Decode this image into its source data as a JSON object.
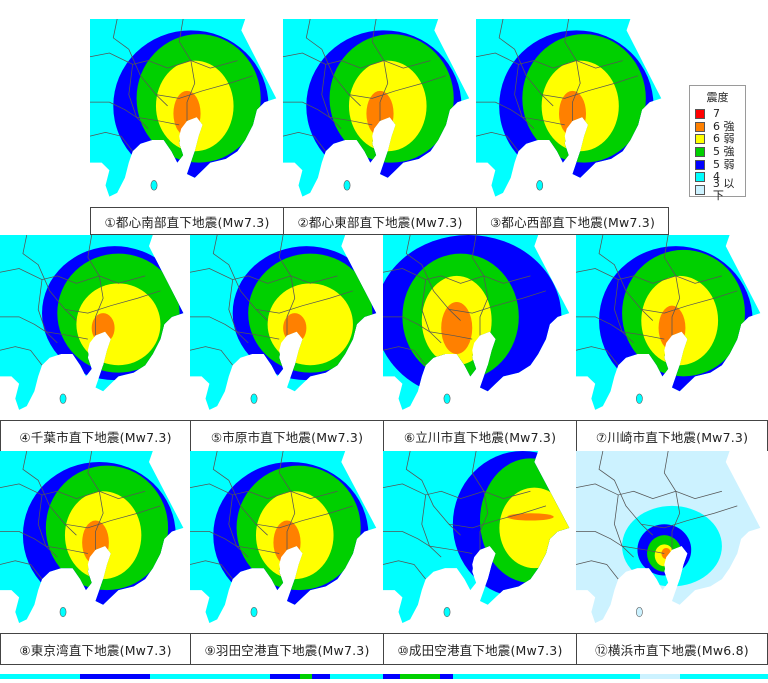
{
  "legend": {
    "title": "震度",
    "items": [
      {
        "label": "7",
        "color": "#ff0000"
      },
      {
        "label": "6 強",
        "color": "#ff8000"
      },
      {
        "label": "6 弱",
        "color": "#ffff00"
      },
      {
        "label": "5 強",
        "color": "#00d000"
      },
      {
        "label": "5 弱",
        "color": "#0000ff"
      },
      {
        "label": "4",
        "color": "#00ffff"
      },
      {
        "label": "3 以下",
        "color": "#ccf2ff"
      }
    ]
  },
  "colors": {
    "sea": "#ffffff",
    "border_line": "#555555",
    "intensity_7": "#ff0000",
    "intensity_6plus": "#ff8000",
    "intensity_6minus": "#ffff00",
    "intensity_5plus": "#00d000",
    "intensity_5minus": "#0000ff",
    "intensity_4": "#00ffff",
    "intensity_3_or_less": "#ccf2ff"
  },
  "panels": [
    {
      "id": 1,
      "caption": "①都心南部直下地震(Mw7.3)",
      "profile": "central"
    },
    {
      "id": 2,
      "caption": "②都心東部直下地震(Mw7.3)",
      "profile": "central"
    },
    {
      "id": 3,
      "caption": "③都心西部直下地震(Mw7.3)",
      "profile": "central"
    },
    {
      "id": 4,
      "caption": "④千葉市直下地震(Mw7.3)",
      "profile": "east"
    },
    {
      "id": 5,
      "caption": "⑤市原市直下地震(Mw7.3)",
      "profile": "east"
    },
    {
      "id": 6,
      "caption": "⑥立川市直下地震(Mw7.3)",
      "profile": "west"
    },
    {
      "id": 7,
      "caption": "⑦川崎市直下地震(Mw7.3)",
      "profile": "central"
    },
    {
      "id": 8,
      "caption": "⑧東京湾直下地震(Mw7.3)",
      "profile": "central"
    },
    {
      "id": 9,
      "caption": "⑨羽田空港直下地震(Mw7.3)",
      "profile": "central"
    },
    {
      "id": 10,
      "caption": "⑩成田空港直下地震(Mw7.3)",
      "profile": "northeast"
    },
    {
      "id": 12,
      "caption": "⑫横浜市直下地震(Mw6.8)",
      "profile": "small"
    }
  ]
}
